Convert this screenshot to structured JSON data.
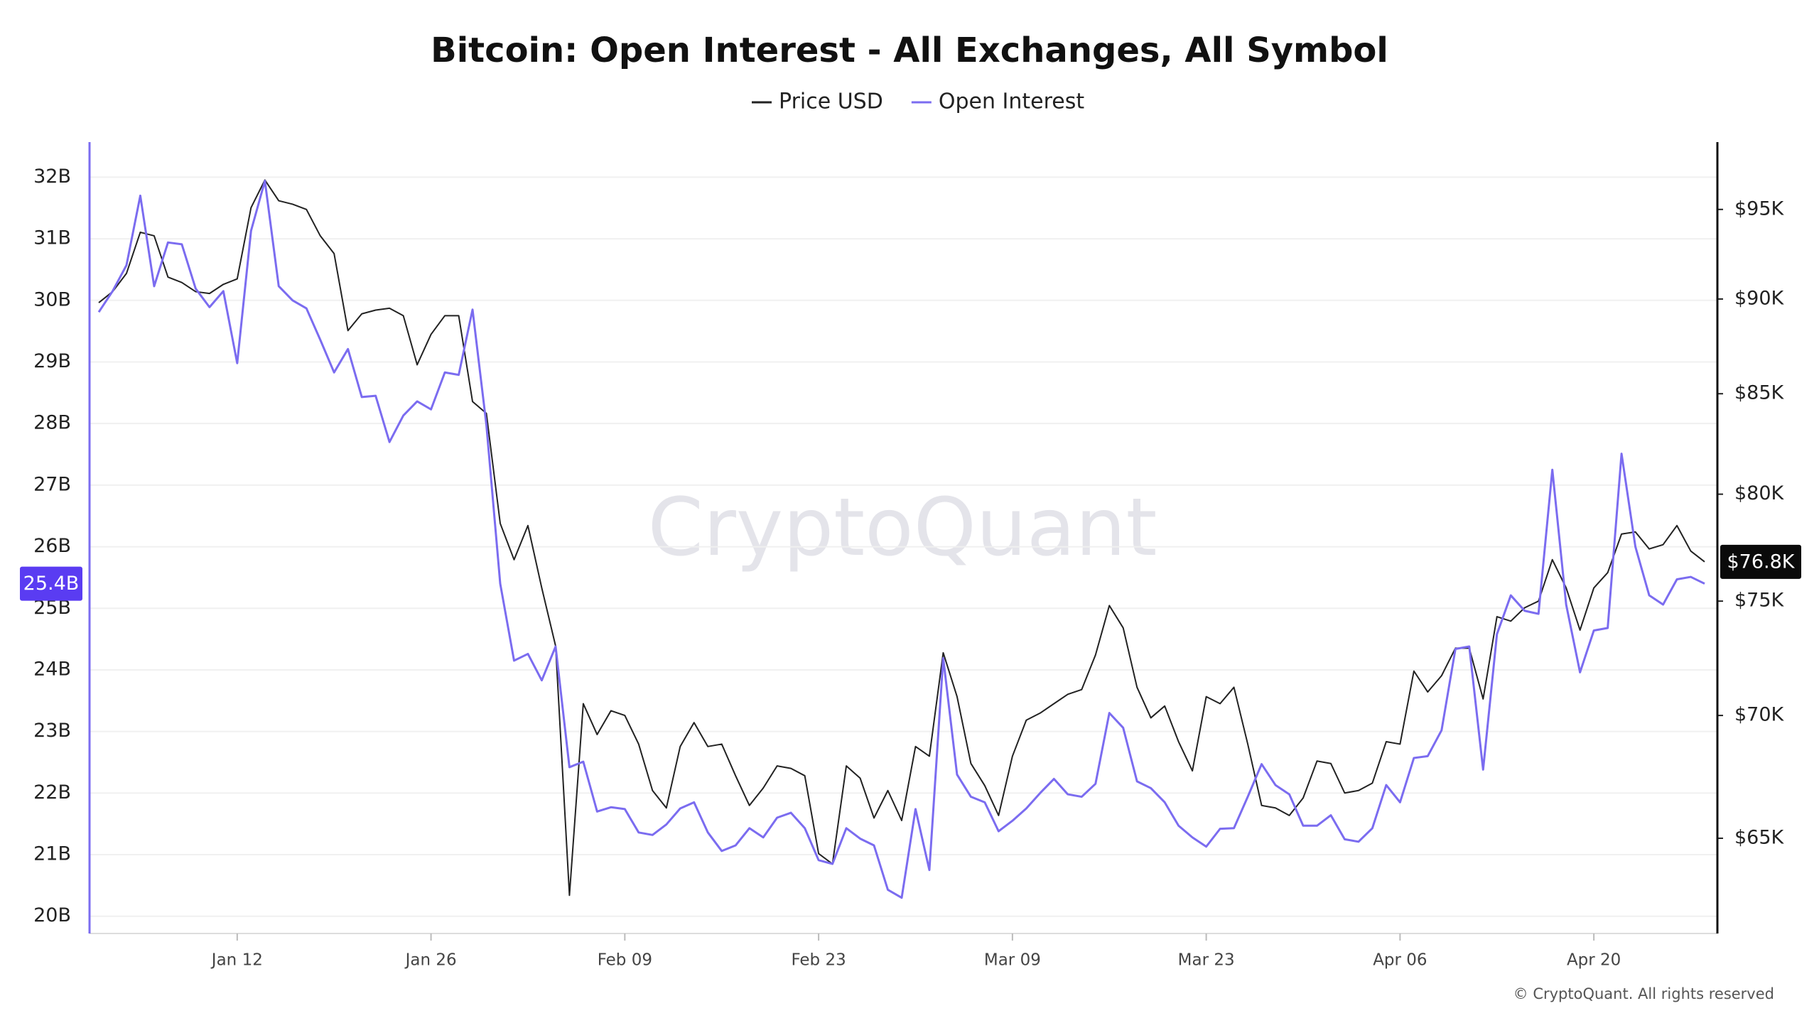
{
  "chart_data": {
    "type": "line",
    "title": "Bitcoin: Open Interest - All Exchanges, All Symbol",
    "watermark": "CryptoQuant",
    "credit": "© CryptoQuant. All rights reserved",
    "categories": [
      null,
      null,
      null,
      null,
      null,
      null,
      null,
      null,
      null,
      null,
      "Jan 12",
      null,
      null,
      null,
      null,
      null,
      null,
      null,
      null,
      null,
      null,
      null,
      null,
      null,
      "Jan 26",
      null,
      null,
      null,
      null,
      null,
      null,
      null,
      null,
      null,
      null,
      null,
      null,
      null,
      "Feb 09",
      null,
      null,
      null,
      null,
      null,
      null,
      null,
      null,
      null,
      null,
      null,
      null,
      null,
      "Feb 23",
      null,
      null,
      null,
      null,
      null,
      null,
      null,
      null,
      null,
      null,
      null,
      null,
      null,
      "Mar 09",
      null,
      null,
      null,
      null,
      null,
      null,
      null,
      null,
      null,
      null,
      null,
      null,
      null,
      "Mar 23",
      null,
      null,
      null,
      null,
      null,
      null,
      null,
      null,
      null,
      null,
      null,
      null,
      null,
      "Apr 06",
      null,
      null,
      null,
      null,
      null,
      null,
      null,
      null,
      null,
      null,
      null,
      null,
      null,
      "Apr 20",
      null,
      null,
      null,
      null,
      null,
      null,
      null,
      null
    ],
    "ylim": [
      19.72,
      32.57
    ],
    "yticks": [
      {
        "value": 20,
        "label": "20B"
      },
      {
        "value": 21,
        "label": "21B"
      },
      {
        "value": 22,
        "label": "22B"
      },
      {
        "value": 23,
        "label": "23B"
      },
      {
        "value": 24,
        "label": "24B"
      },
      {
        "value": 25,
        "label": "25B"
      },
      {
        "value": 26,
        "label": "26B"
      },
      {
        "value": 27,
        "label": "27B"
      },
      {
        "value": 28,
        "label": "28B"
      },
      {
        "value": 29,
        "label": "29B"
      },
      {
        "value": 30,
        "label": "30B"
      },
      {
        "value": 31,
        "label": "31B"
      },
      {
        "value": 32,
        "label": "32B"
      }
    ],
    "y2lim": [
      61.37,
      98.94
    ],
    "y2log": true,
    "y2ticks": [
      {
        "value": 65,
        "label": "$65K"
      },
      {
        "value": 70,
        "label": "$70K"
      },
      {
        "value": 75,
        "label": "$75K"
      },
      {
        "value": 80,
        "label": "$80K"
      },
      {
        "value": 85,
        "label": "$85K"
      },
      {
        "value": 90,
        "label": "$90K"
      },
      {
        "value": 95,
        "label": "$95K"
      }
    ],
    "grid": true,
    "series": [
      {
        "name": "Price USD",
        "color": "#222222",
        "axis": "y2",
        "current_label": "$76.8K",
        "values": [
          89.8,
          90.4,
          91.4,
          93.7,
          93.5,
          91.2,
          90.9,
          90.4,
          90.3,
          90.8,
          91.1,
          95.1,
          96.7,
          95.5,
          95.3,
          95.0,
          93.5,
          92.5,
          88.3,
          89.2,
          89.4,
          89.5,
          89.1,
          86.5,
          88.1,
          89.1,
          89.1,
          84.6,
          84.0,
          78.6,
          76.9,
          78.5,
          75.6,
          73.0,
          62.8,
          70.5,
          69.2,
          70.2,
          70.0,
          68.8,
          66.9,
          66.2,
          68.7,
          69.7,
          68.7,
          68.8,
          67.5,
          66.3,
          67.0,
          67.9,
          67.8,
          67.5,
          64.4,
          64.0,
          67.9,
          67.4,
          65.8,
          66.9,
          65.7,
          68.7,
          68.3,
          72.7,
          70.8,
          68.0,
          67.1,
          65.9,
          68.3,
          69.8,
          70.1,
          70.5,
          70.9,
          71.1,
          72.6,
          74.8,
          73.8,
          71.2,
          69.9,
          70.4,
          68.9,
          67.7,
          70.8,
          70.5,
          71.2,
          68.8,
          66.3,
          66.2,
          65.9,
          66.6,
          68.1,
          68.0,
          66.8,
          66.9,
          67.2,
          68.9,
          68.8,
          71.9,
          71.0,
          71.7,
          72.9,
          72.9,
          70.7,
          74.3,
          74.1,
          74.7,
          75.0,
          76.9,
          75.6,
          73.7,
          75.6,
          76.3,
          78.1,
          78.2,
          77.4,
          77.6,
          78.5,
          77.3,
          76.8
        ]
      },
      {
        "name": "Open Interest",
        "color": "#7b6cf0",
        "axis": "y",
        "current_label": "25.4B",
        "values": [
          29.81,
          30.15,
          30.57,
          31.7,
          30.23,
          30.94,
          30.91,
          30.19,
          29.89,
          30.15,
          28.98,
          31.13,
          31.94,
          30.23,
          30.0,
          29.87,
          29.36,
          28.83,
          29.21,
          28.43,
          28.45,
          27.7,
          28.13,
          28.36,
          28.23,
          28.83,
          28.79,
          29.85,
          27.98,
          25.4,
          24.15,
          24.26,
          23.83,
          24.38,
          22.42,
          22.51,
          21.7,
          21.77,
          21.74,
          21.36,
          21.32,
          21.49,
          21.75,
          21.85,
          21.36,
          21.06,
          21.15,
          21.43,
          21.28,
          21.6,
          21.68,
          21.43,
          20.91,
          20.85,
          21.43,
          21.26,
          21.15,
          20.43,
          20.3,
          21.74,
          20.75,
          24.19,
          22.3,
          21.94,
          21.85,
          21.38,
          21.55,
          21.75,
          22.0,
          22.23,
          21.98,
          21.94,
          22.15,
          23.3,
          23.06,
          22.19,
          22.08,
          21.85,
          21.47,
          21.28,
          21.13,
          21.42,
          21.43,
          21.94,
          22.47,
          22.13,
          21.98,
          21.47,
          21.47,
          21.64,
          21.25,
          21.21,
          21.43,
          22.13,
          21.85,
          22.57,
          22.6,
          23.02,
          24.34,
          24.38,
          22.38,
          24.58,
          25.21,
          24.96,
          24.91,
          27.25,
          25.06,
          23.96,
          24.64,
          24.68,
          27.51,
          26.0,
          25.21,
          25.06,
          25.47,
          25.51,
          25.4
        ]
      }
    ]
  }
}
